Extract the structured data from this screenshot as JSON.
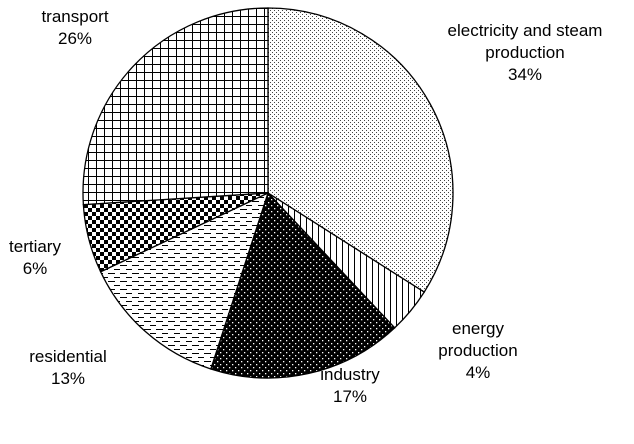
{
  "chart_data": {
    "type": "pie",
    "categories": [
      "electricity and steam production",
      "energy production",
      "industry",
      "residential",
      "tertiary",
      "transport"
    ],
    "values": [
      34,
      4,
      17,
      13,
      6,
      26
    ],
    "value_labels": [
      "34%",
      "4%",
      "17%",
      "13%",
      "6%",
      "26%"
    ]
  }
}
